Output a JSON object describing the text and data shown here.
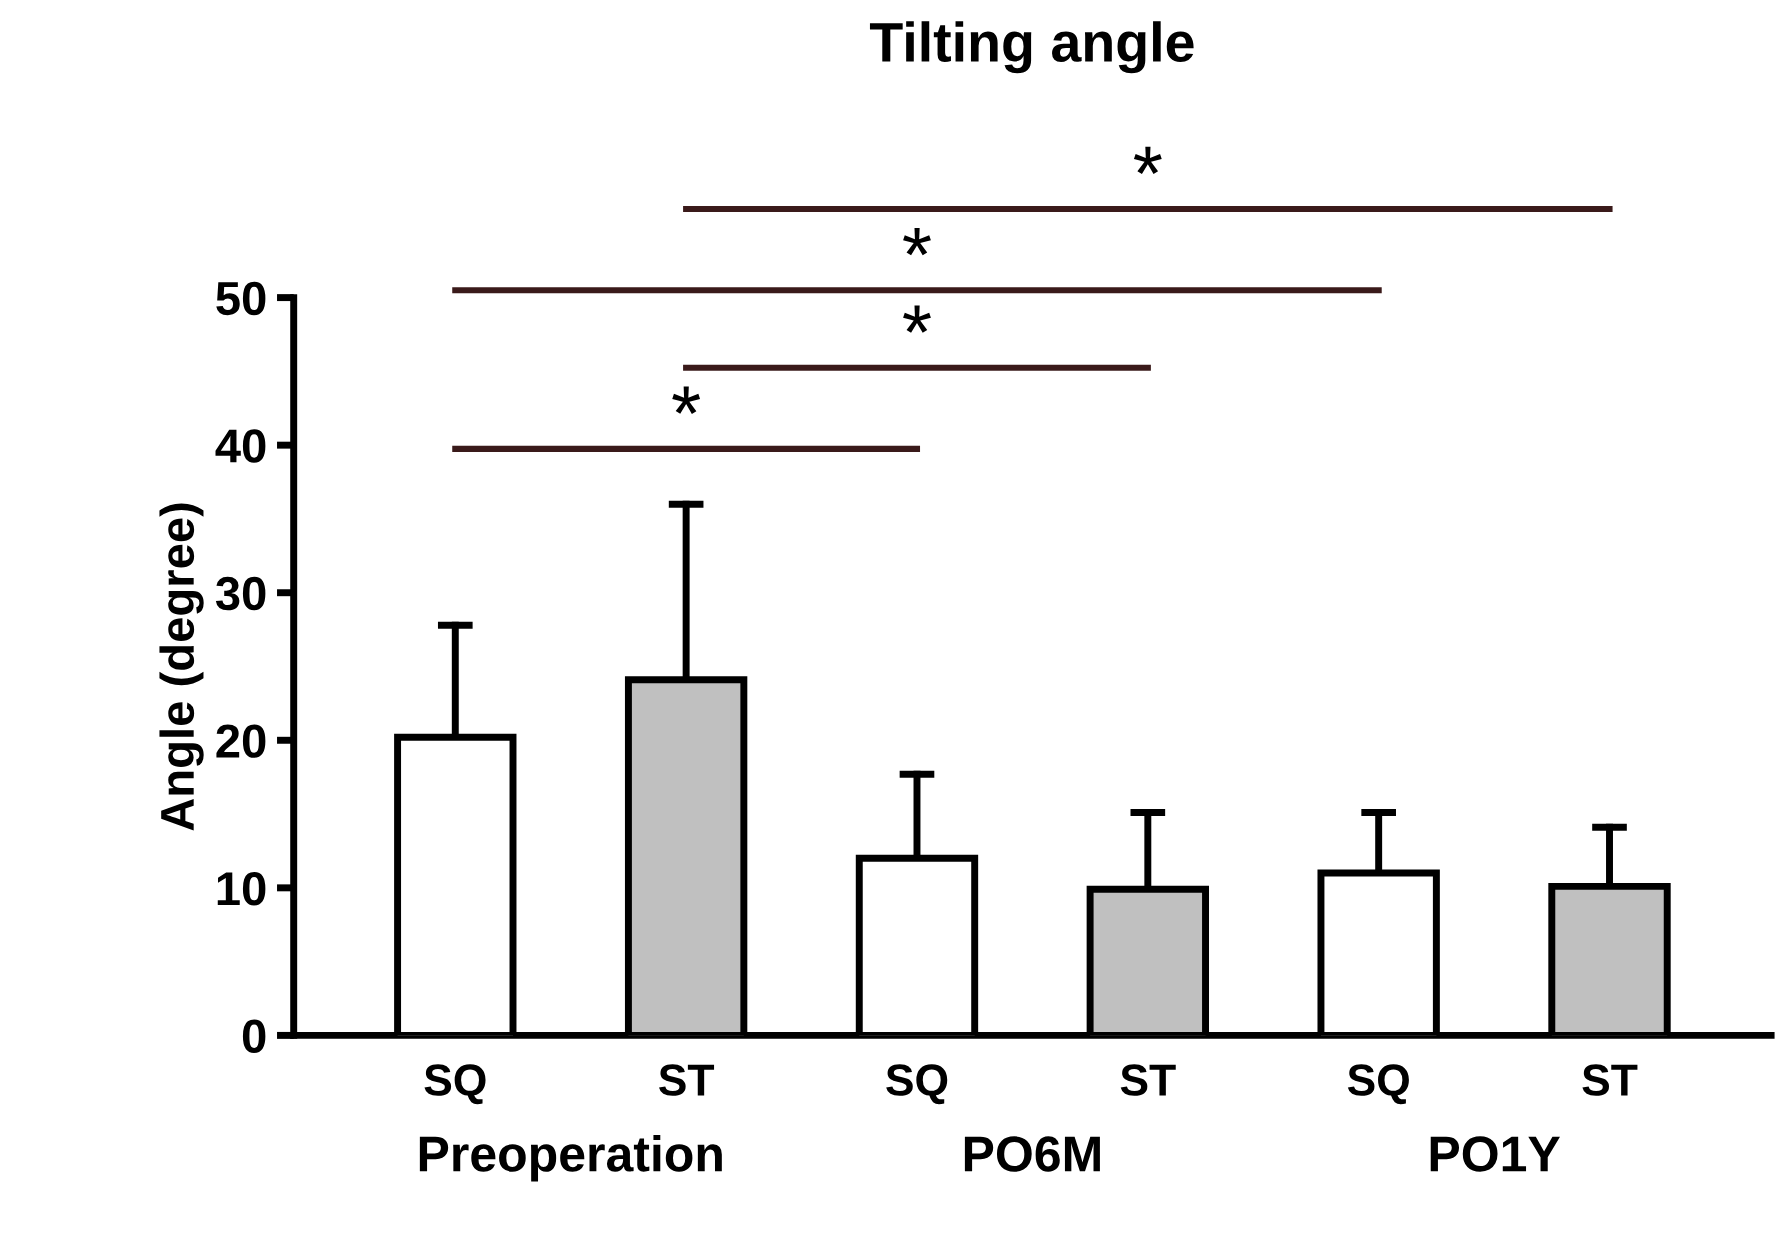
{
  "chart_data": {
    "type": "bar",
    "title": "Tilting angle",
    "ylabel": "Angle (degree)",
    "categories": [
      "SQ",
      "ST",
      "SQ",
      "ST",
      "SQ",
      "ST"
    ],
    "values": [
      20.2,
      24.1,
      12.0,
      9.9,
      11.0,
      10.1
    ],
    "colors": [
      "#ffffff",
      "#c0c0c0",
      "#ffffff",
      "#c0c0c0",
      "#ffffff",
      "#c0c0c0"
    ],
    "errors": [
      7.6,
      11.9,
      5.7,
      5.2,
      4.1,
      4.0
    ],
    "ylim": [
      0,
      50
    ],
    "yticks": [
      0,
      10,
      20,
      30,
      40,
      50
    ],
    "annotations": [
      "Preoperation",
      "PO6M",
      "PO1Y",
      "*",
      "*",
      "*",
      "*"
    ],
    "grid": false
  }
}
